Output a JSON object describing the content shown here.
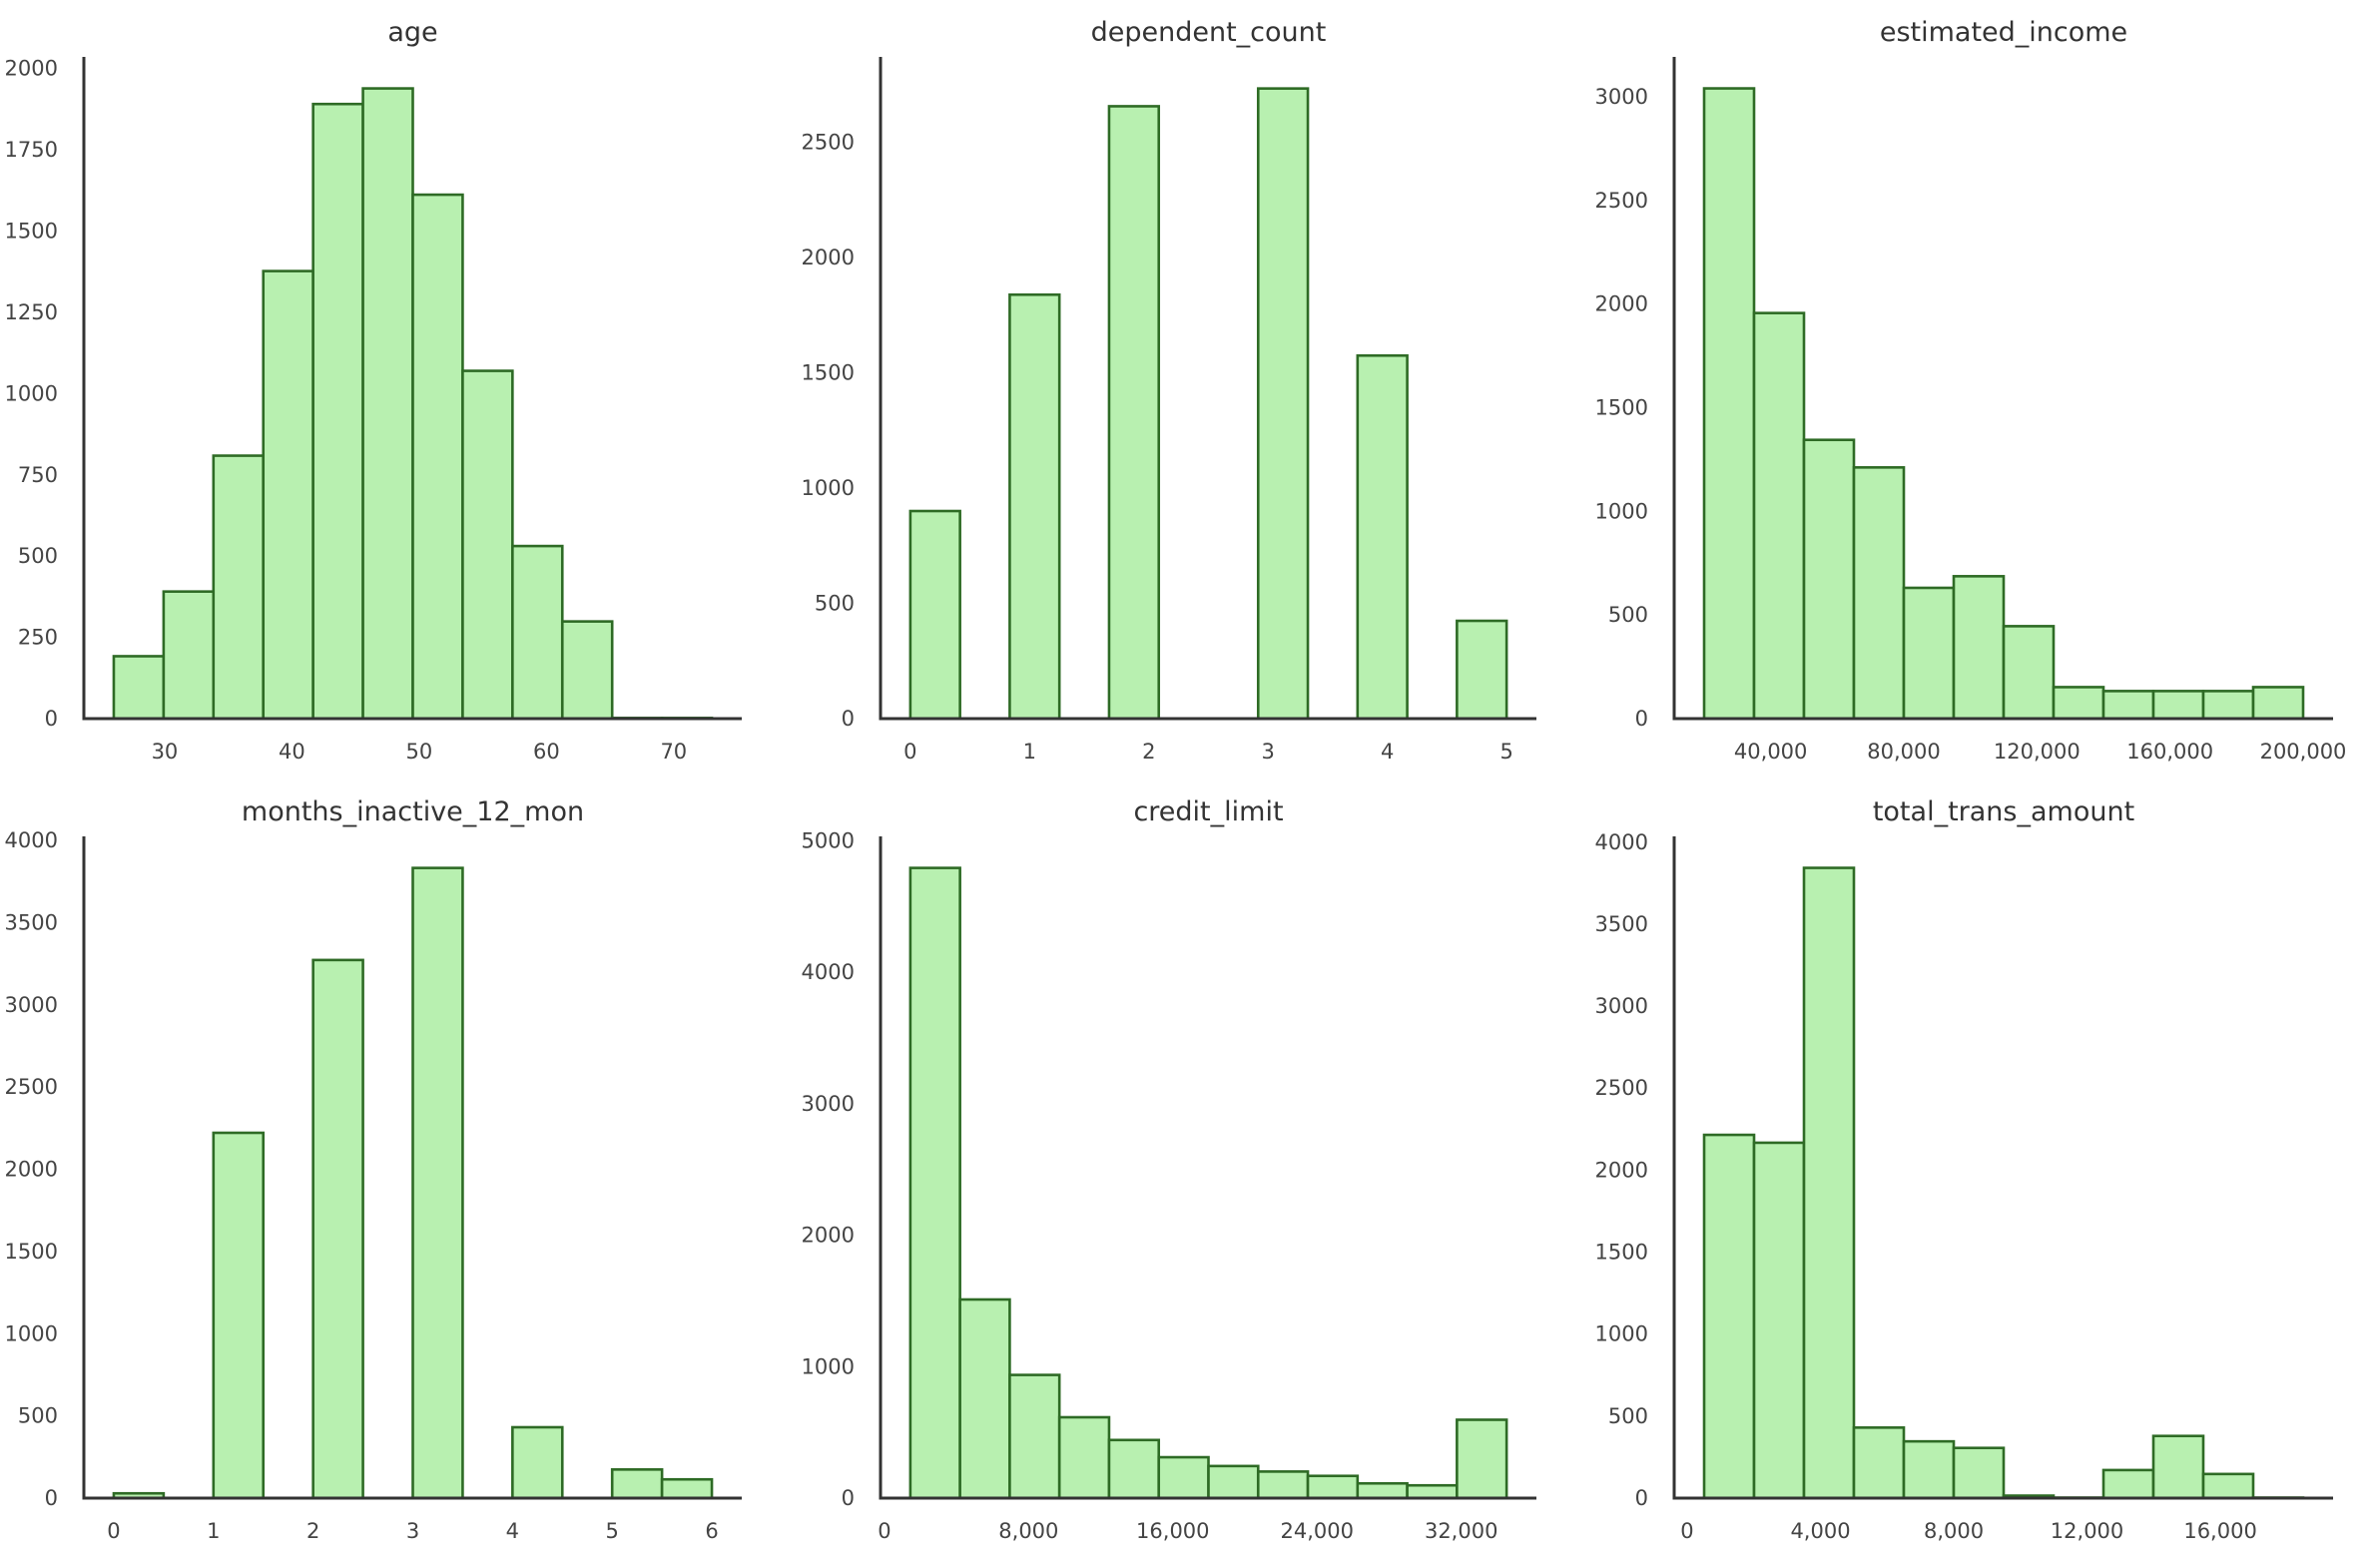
{
  "figure": {
    "type": "histogram-grid",
    "colors": {
      "bar_fill": "#b8f0b0",
      "bar_edge": "#2e6b25",
      "axis": "#333333",
      "text": "#444444"
    }
  },
  "chart_data": [
    {
      "type": "bar",
      "subtype": "histogram",
      "title": "age",
      "xlabel": "",
      "ylabel": "",
      "bin_edges_range": [
        26,
        73
      ],
      "bins": 12,
      "values": [
        192,
        391,
        809,
        1377,
        1891,
        1939,
        1612,
        1070,
        531,
        299,
        2,
        2
      ],
      "xlim": [
        23.65,
        75.35
      ],
      "ylim": [
        0,
        2036
      ],
      "xticks": [
        30,
        40,
        50,
        60,
        70
      ],
      "xtick_labels": [
        "30",
        "40",
        "50",
        "60",
        "70"
      ],
      "yticks": [
        0,
        250,
        500,
        750,
        1000,
        1250,
        1500,
        1750,
        2000
      ],
      "ytick_labels": [
        "0",
        "250",
        "500",
        "750",
        "1000",
        "1250",
        "1500",
        "1750",
        "2000"
      ],
      "grid": false
    },
    {
      "type": "bar",
      "subtype": "histogram",
      "title": "dependent_count",
      "xlabel": "",
      "ylabel": "",
      "bin_edges_range": [
        0,
        5
      ],
      "bins": 12,
      "values": [
        900,
        0,
        1838,
        0,
        2655,
        0,
        0,
        2732,
        0,
        1574,
        0,
        424
      ],
      "xlim": [
        -0.25,
        5.25
      ],
      "ylim": [
        0,
        2869
      ],
      "xticks": [
        0,
        1,
        2,
        3,
        4,
        5
      ],
      "xtick_labels": [
        "0",
        "1",
        "2",
        "3",
        "4",
        "5"
      ],
      "yticks": [
        0,
        500,
        1000,
        1500,
        2000,
        2500
      ],
      "ytick_labels": [
        "0",
        "500",
        "1000",
        "1500",
        "2000",
        "2500"
      ],
      "grid": false
    },
    {
      "type": "bar",
      "subtype": "histogram",
      "title": "estimated_income",
      "xlabel": "",
      "ylabel": "",
      "bin_edges_range": [
        20000,
        200000
      ],
      "bins": 12,
      "values": [
        3041,
        1957,
        1345,
        1212,
        631,
        687,
        446,
        152,
        133,
        133,
        133,
        152
      ],
      "xlim": [
        11000,
        209000
      ],
      "ylim": [
        0,
        3193
      ],
      "xticks": [
        40000,
        80000,
        120000,
        160000,
        200000
      ],
      "xtick_labels": [
        "40,000",
        "80,000",
        "120,000",
        "160,000",
        "200,000"
      ],
      "yticks": [
        0,
        500,
        1000,
        1500,
        2000,
        2500,
        3000
      ],
      "ytick_labels": [
        "0",
        "500",
        "1000",
        "1500",
        "2000",
        "2500",
        "3000"
      ],
      "grid": false
    },
    {
      "type": "bar",
      "subtype": "histogram",
      "title": "months_inactive_12_mon",
      "xlabel": "",
      "ylabel": "",
      "bin_edges_range": [
        0,
        6
      ],
      "bins": 12,
      "values": [
        29,
        0,
        2222,
        0,
        3273,
        0,
        3833,
        0,
        431,
        0,
        174,
        114
      ],
      "xlim": [
        -0.3,
        6.3
      ],
      "ylim": [
        0,
        4025
      ],
      "xticks": [
        0,
        1,
        2,
        3,
        4,
        5,
        6
      ],
      "xtick_labels": [
        "0",
        "1",
        "2",
        "3",
        "4",
        "5",
        "6"
      ],
      "yticks": [
        0,
        500,
        1000,
        1500,
        2000,
        2500,
        3000,
        3500,
        4000
      ],
      "ytick_labels": [
        "0",
        "500",
        "1000",
        "1500",
        "2000",
        "2500",
        "3000",
        "3500",
        "4000"
      ],
      "grid": false
    },
    {
      "type": "bar",
      "subtype": "histogram",
      "title": "credit_limit",
      "xlabel": "",
      "ylabel": "",
      "bin_edges_range": [
        1438,
        34516
      ],
      "bins": 12,
      "values": [
        4794,
        1511,
        937,
        615,
        442,
        311,
        244,
        202,
        169,
        112,
        97,
        596
      ],
      "xlim": [
        -216,
        36170
      ],
      "ylim": [
        0,
        5034
      ],
      "xticks": [
        0,
        8000,
        16000,
        24000,
        32000
      ],
      "xtick_labels": [
        "0",
        "8,000",
        "16,000",
        "24,000",
        "32,000"
      ],
      "yticks": [
        0,
        1000,
        2000,
        3000,
        4000,
        5000
      ],
      "ytick_labels": [
        "0",
        "1000",
        "2000",
        "3000",
        "4000",
        "5000"
      ],
      "grid": false
    },
    {
      "type": "bar",
      "subtype": "histogram",
      "title": "total_trans_amount",
      "xlabel": "",
      "ylabel": "",
      "bin_edges_range": [
        510,
        18484
      ],
      "bins": 12,
      "values": [
        2215,
        2167,
        3843,
        430,
        346,
        306,
        15,
        3,
        171,
        379,
        147,
        3
      ],
      "xlim": [
        -389,
        19383
      ],
      "ylim": [
        0,
        4035
      ],
      "xticks": [
        0,
        4000,
        8000,
        12000,
        16000
      ],
      "xtick_labels": [
        "0",
        "4,000",
        "8,000",
        "12,000",
        "16,000"
      ],
      "yticks": [
        0,
        500,
        1000,
        1500,
        2000,
        2500,
        3000,
        3500,
        4000
      ],
      "ytick_labels": [
        "0",
        "500",
        "1000",
        "1500",
        "2000",
        "2500",
        "3000",
        "3500",
        "4000"
      ],
      "grid": false
    }
  ]
}
